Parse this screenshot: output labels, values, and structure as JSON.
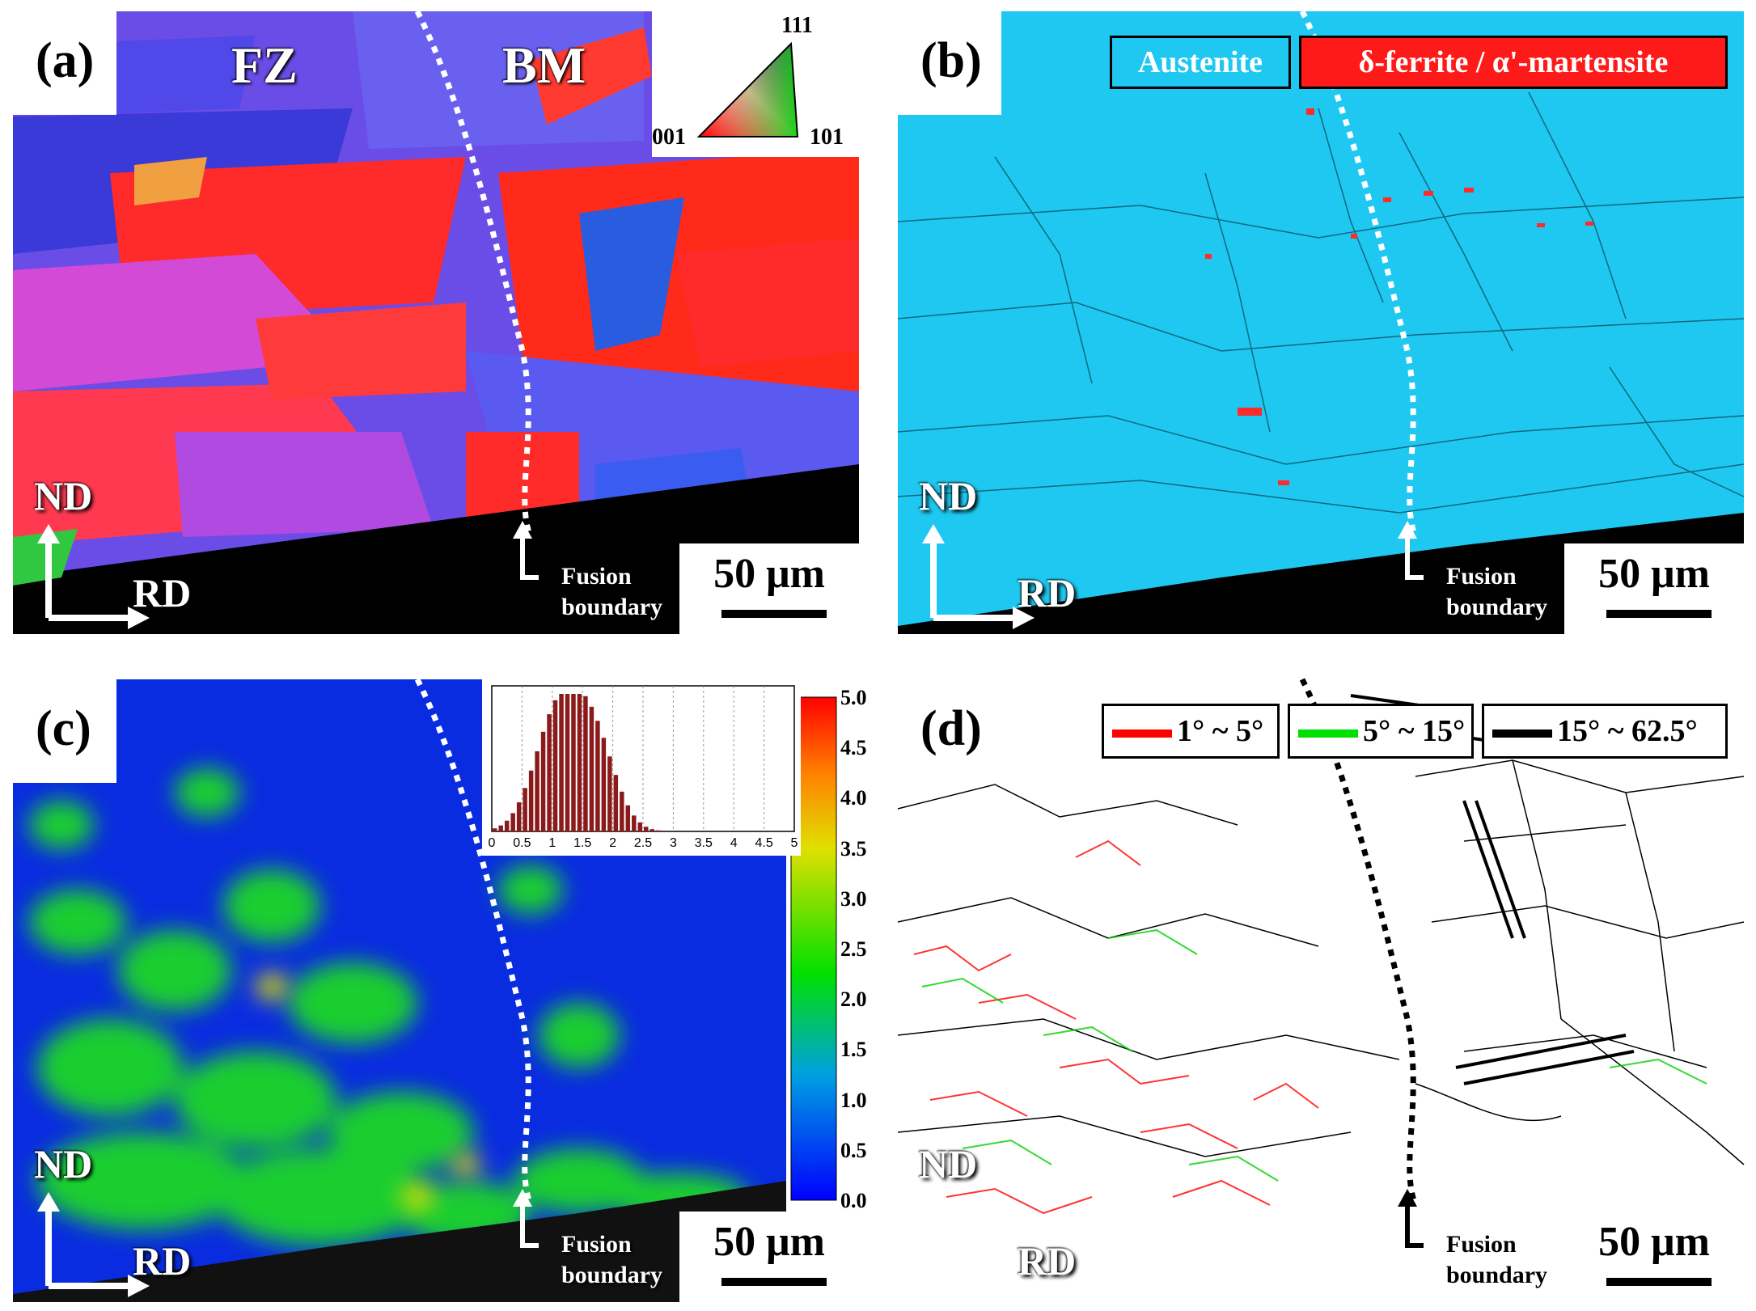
{
  "panels": {
    "a": {
      "letter": "(a)",
      "fz": "FZ",
      "bm": "BM",
      "ipf": {
        "top": "111",
        "left": "001",
        "right": "101"
      },
      "nd": "ND",
      "rd": "RD",
      "fusion": [
        "Fusion",
        "boundary"
      ],
      "scale": "50 μm"
    },
    "b": {
      "letter": "(b)",
      "legend_austenite": "Austenite",
      "legend_ferrite": "δ-ferrite / α'-martensite",
      "nd": "ND",
      "rd": "RD",
      "fusion": [
        "Fusion",
        "boundary"
      ],
      "scale": "50 μm"
    },
    "c": {
      "letter": "(c)",
      "colorbar_ticks": [
        "5.0",
        "4.5",
        "4.0",
        "3.5",
        "3.0",
        "2.5",
        "2.0",
        "1.5",
        "1.0",
        "0.5",
        "0.0"
      ],
      "hist_xticks": [
        "0",
        "0.5",
        "1",
        "1.5",
        "2",
        "2.5",
        "3",
        "3.5",
        "4",
        "4.5",
        "5"
      ],
      "nd": "ND",
      "rd": "RD",
      "fusion": [
        "Fusion",
        "boundary"
      ],
      "scale": "50 μm"
    },
    "d": {
      "letter": "(d)",
      "legend": [
        "1° ~ 5°",
        "5° ~ 15°",
        "15° ~ 62.5°"
      ],
      "legend_colors": [
        "#ff0000",
        "#00e000",
        "#000000"
      ],
      "nd": "ND",
      "rd": "RD",
      "fusion": [
        "Fusion",
        "boundary"
      ],
      "scale": "50 μm"
    }
  },
  "colors": {
    "austenite": "#1ec8f0",
    "ferrite": "#ff1a1a",
    "kam_low": "#0a2ce0",
    "kam_mid": "#1ee01e"
  }
}
